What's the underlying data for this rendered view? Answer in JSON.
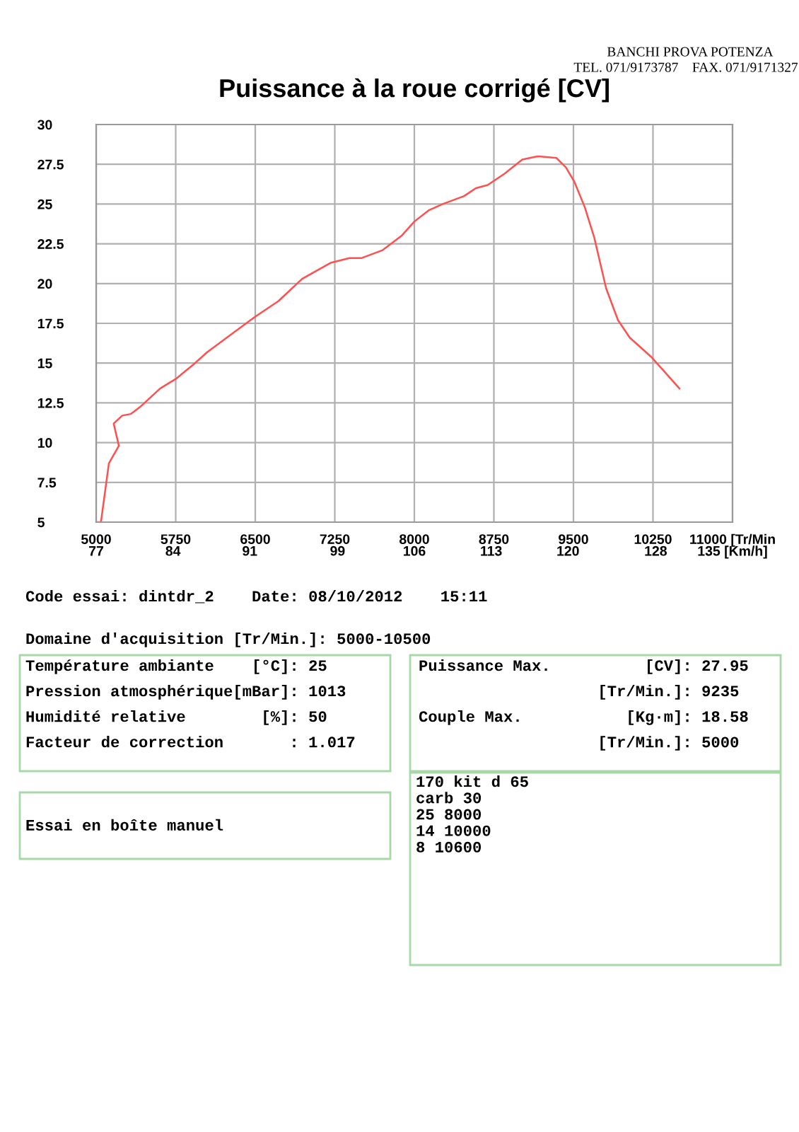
{
  "chart_data": {
    "type": "line",
    "title": "Puissance à la roue corrigé [CV]",
    "x": [
      5000,
      5045,
      5120,
      5214,
      5165,
      5246,
      5326,
      5424,
      5603,
      5750,
      5915,
      6049,
      6272,
      6496,
      6719,
      6942,
      7210,
      7388,
      7500,
      7701,
      7879,
      8000,
      8134,
      8268,
      8469,
      8580,
      8692,
      8848,
      9018,
      9161,
      9339,
      9429,
      9509,
      9607,
      9696,
      9808,
      9920,
      10031,
      10232,
      10366,
      10500
    ],
    "series": [
      {
        "color": "#ff5050",
        "values": [
          5,
          5,
          8.7,
          9.8,
          11.2,
          11.7,
          11.8,
          12.3,
          13.4,
          14.0,
          14.9,
          15.7,
          16.8,
          17.9,
          18.9,
          20.3,
          21.3,
          21.6,
          21.6,
          22.1,
          23.0,
          23.9,
          24.6,
          25.0,
          25.5,
          26.0,
          26.2,
          26.9,
          27.8,
          28.0,
          27.9,
          27.3,
          26.4,
          24.8,
          22.9,
          19.7,
          17.7,
          16.6,
          15.4,
          14.4,
          13.4
        ]
      }
    ],
    "xlim": [
      5000,
      11000
    ],
    "ylim": [
      5,
      30
    ],
    "xticks": [
      5000,
      5750,
      6500,
      7250,
      8000,
      8750,
      9500,
      10250,
      {
        "value": 11000,
        "label": "11000 [Tr/Min"
      }
    ],
    "x2lim": [
      77,
      135
    ],
    "x2ticks": [
      77,
      84,
      91,
      99,
      106,
      113,
      120,
      128,
      {
        "value": 135,
        "label": "135 [Km/h]"
      }
    ],
    "yticks": [
      5,
      7.5,
      10,
      12.5,
      15,
      17.5,
      20,
      22.5,
      25,
      27.5,
      30
    ],
    "grid": true,
    "legend": false,
    "marker": "none",
    "line_style": "solid",
    "annotations": [
      "BANCHI PROVA POTENZA",
      "TEL. 071/9173787    FAX. 071/9171327",
      "Code essai: dintdr_2    Date: 08/10/2012    15:11",
      "Domaine d'acquisition [Tr/Min.]: 5000-10500",
      "Température ambiante    [°C]: 25\nPression atmosphérique[mBar]: 1013\nHumidité relative        [%]: 50\nFacteur de correction       : 1.017",
      "Puissance Max.          [CV]: 27.95\n                   [Tr/Min.]: 9235\nCouple Max.           [Kg·m]: 18.58\n                   [Tr/Min.]: 5000",
      "Essai en boîte manuel",
      "170 kit d 65\ncarb 30\n25 8000\n14 10000\n8 10600"
    ]
  }
}
